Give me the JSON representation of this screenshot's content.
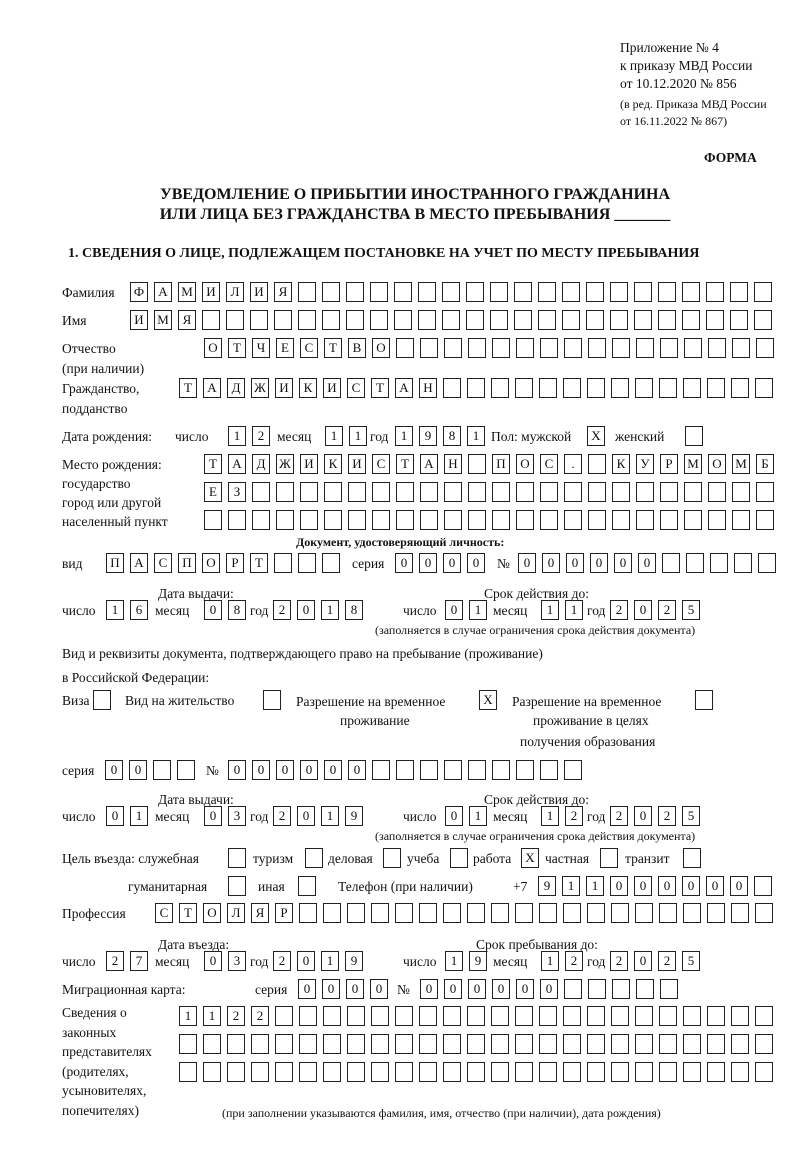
{
  "header": {
    "line1": "Приложение № 4",
    "line2": "к приказу МВД России",
    "line3": "от 10.12.2020 № 856",
    "line4": "(в ред. Приказа МВД России",
    "line5": "от 16.11.2022 № 867)"
  },
  "form_label": "ФОРМА",
  "title": {
    "line1": "УВЕДОМЛЕНИЕ О ПРИБЫТИИ ИНОСТРАННОГО ГРАЖДАНИНА",
    "line2": "ИЛИ ЛИЦА БЕЗ ГРАЖДАНСТВА В МЕСТО ПРЕБЫВАНИЯ _______"
  },
  "section1": "1. СВЕДЕНИЯ О ЛИЦЕ, ПОДЛЕЖАЩЕМ ПОСТАНОВКЕ НА УЧЕТ ПО МЕСТУ ПРЕБЫВАНИЯ",
  "person": {
    "surname_label": "Фамилия",
    "surname": "ФАМИЛИЯ",
    "name_label": "Имя",
    "name": "ИМЯ",
    "patronymic_label": "Отчество",
    "patronymic_label2": "(при наличии)",
    "patronymic": "ОТЧЕСТВО",
    "citizenship_label": "Гражданство,",
    "citizenship_label2": "подданство",
    "citizenship": "ТАДЖИКИСТАН",
    "dob_label": "Дата рождения:",
    "day_label": "число",
    "month_label": "месяц",
    "year_label": "год",
    "dob_day": "12",
    "dob_month": "11",
    "dob_year": "1981",
    "sex_label": "Пол: мужской",
    "female_label": "женский",
    "male_check": "X",
    "female_check": "",
    "birthplace_label1": "Место рождения:",
    "birthplace_label2": "государство",
    "birthplace_label3": "город или другой",
    "birthplace_label4": "населенный пункт",
    "birthplace1": "ТАДЖИКИСТАН ПОС. КУРМОМБ",
    "birthplace2": "ЕЗ",
    "birthplace3": ""
  },
  "id_doc": {
    "heading": "Документ, удостоверяющий личность:",
    "type_label": "вид",
    "type": "ПАСПОРТ",
    "series_label": "серия",
    "series": "0000",
    "number_label": "№",
    "number": "000000",
    "issue_label": "Дата выдачи:",
    "valid_label": "Срок действия до:",
    "issue_day": "16",
    "issue_month": "08",
    "issue_year": "2018",
    "valid_day": "01",
    "valid_month": "11",
    "valid_year": "2025",
    "note": "(заполняется в случае ограничения срока действия документа)"
  },
  "stay_doc": {
    "heading1": "Вид и реквизиты документа, подтверждающего право на пребывание (проживание)",
    "heading2": "в Российской Федерации:",
    "visa_label": "Виза",
    "visa": "",
    "residence_label": "Вид на жительство",
    "residence": "",
    "trp_label1": "Разрешение на временное",
    "trp_label2": "проживание",
    "trp": "X",
    "trp_edu_label1": "Разрешение на временное",
    "trp_edu_label2": "проживание в целях",
    "trp_edu_label3": "получения образования",
    "trp_edu": "",
    "series_label": "серия",
    "series": "00",
    "number_label": "№",
    "number": "000000",
    "issue_label": "Дата выдачи:",
    "valid_label": "Срок действия до:",
    "issue_day": "01",
    "issue_month": "03",
    "issue_year": "2019",
    "valid_day": "01",
    "valid_month": "12",
    "valid_year": "2025",
    "note": "(заполняется в случае ограничения срока действия документа)"
  },
  "purpose": {
    "label": "Цель въезда: служебная",
    "official": "",
    "tourism_label": "туризм",
    "tourism": "",
    "business_label": "деловая",
    "business": "",
    "study_label": "учеба",
    "study": "",
    "work_label": "работа",
    "work": "X",
    "private_label": "частная",
    "private": "",
    "transit_label": "транзит",
    "transit": "",
    "humanitarian_label": "гуманитарная",
    "humanitarian": "",
    "other_label": "иная",
    "other": ""
  },
  "phone": {
    "label": "Телефон (при наличии)",
    "prefix": "+7",
    "number": "911000000"
  },
  "profession": {
    "label": "Профессия",
    "value": "СТОЛЯР"
  },
  "entry": {
    "entry_label": "Дата въезда:",
    "stay_until_label": "Срок пребывания до:",
    "entry_day": "27",
    "entry_month": "03",
    "entry_year": "2019",
    "until_day": "19",
    "until_month": "12",
    "until_year": "2025"
  },
  "migration_card": {
    "label": "Миграционная карта:",
    "series_label": "серия",
    "series": "0000",
    "number_label": "№",
    "number": "000000"
  },
  "legal_reps": {
    "label1": "Сведения о",
    "label2": "законных",
    "label3": "представителях",
    "label4": "(родителях,",
    "label5": "усыновителях,",
    "label6": "попечителях)",
    "row1": "1122",
    "row2": "",
    "row3": "",
    "note": "(при заполнении указываются фамилия, имя, отчество (при наличии), дата рождения)"
  }
}
